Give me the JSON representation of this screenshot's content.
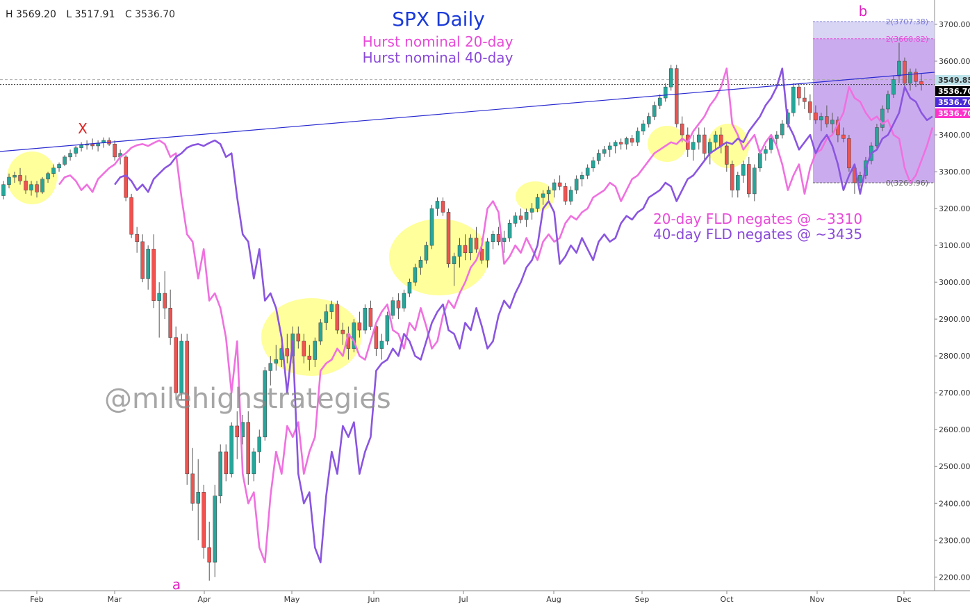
{
  "ohlc": {
    "high": "H 3569.20",
    "low": "L 3517.91",
    "close": "C 3536.70"
  },
  "chart_data": {
    "type": "candlestick",
    "title": "SPX Daily",
    "subtitle_lines": [
      {
        "text": "Hurst nominal 20-day",
        "color": "#e84ad8"
      },
      {
        "text": "Hurst nominal 40-day",
        "color": "#8a4ad8"
      }
    ],
    "x_ticks": [
      "Feb",
      "Mar",
      "Apr",
      "May",
      "Jun",
      "Jul",
      "Aug",
      "Sep",
      "Oct",
      "Nov",
      "Dec"
    ],
    "y_ticks": [
      3700,
      3600,
      3500,
      3400,
      3300,
      3200,
      3100,
      3000,
      2900,
      2800,
      2700,
      2600,
      2500,
      2400,
      2300,
      2200
    ],
    "y_tick_labels": [
      "3700.00",
      "3600.00",
      "3400.00",
      "3300.00",
      "3200.00",
      "3100.00",
      "3000.00",
      "2900.00",
      "2800.00",
      "2700.00",
      "2600.00",
      "2500.00",
      "2400.00",
      "2300.00",
      "2200.00"
    ],
    "ylim": [
      2160,
      3740
    ],
    "price_labels": [
      {
        "text": "3549.85",
        "value": 3549.85,
        "bg": "#bde3ea",
        "fg": "#333333"
      },
      {
        "text": "3536.70",
        "value": 3536.7,
        "bg": "#000000",
        "fg": "#ffffff"
      },
      {
        "text": "3536.70",
        "value": 3536.7,
        "bg": "#4a2ad8",
        "fg": "#ffffff"
      },
      {
        "text": "3536.70",
        "value": 3536.7,
        "bg": "#ff33cc",
        "fg": "#ffffff"
      }
    ],
    "fib_levels": [
      {
        "text": "2(3707.38)",
        "value": 3707.38,
        "color": "#7a7ad8"
      },
      {
        "text": "2(3660.82)",
        "value": 3660.82,
        "color": "#e84ad8"
      },
      {
        "text": "0(3269.96)",
        "value": 3269.96,
        "color": "#666666"
      }
    ],
    "annotations": [
      {
        "text": "X",
        "color": "#e02020"
      },
      {
        "text": "a",
        "color": "#e020c0"
      },
      {
        "text": "b",
        "color": "#e020c0"
      },
      {
        "text": "20-day FLD negates @ ~3310",
        "color": "#e84ad8"
      },
      {
        "text": "40-day FLD negates @ ~3435",
        "color": "#8a4ad8"
      }
    ],
    "watermark": "@milehighstrategies",
    "colors": {
      "up": "#26a69a",
      "down": "#ef5350",
      "fld20": "#f070e0",
      "fld40": "#8a55e0",
      "trendline": "#2a2ad0",
      "highlight": "#ffff66",
      "projection": "#b890e8"
    },
    "candles": [
      [
        3235,
        3275,
        3225,
        3265
      ],
      [
        3265,
        3295,
        3255,
        3285
      ],
      [
        3285,
        3300,
        3270,
        3290
      ],
      [
        3290,
        3310,
        3265,
        3275
      ],
      [
        3275,
        3290,
        3240,
        3250
      ],
      [
        3250,
        3275,
        3235,
        3265
      ],
      [
        3265,
        3275,
        3230,
        3245
      ],
      [
        3245,
        3285,
        3240,
        3280
      ],
      [
        3280,
        3300,
        3270,
        3295
      ],
      [
        3295,
        3320,
        3285,
        3310
      ],
      [
        3310,
        3325,
        3300,
        3320
      ],
      [
        3320,
        3345,
        3315,
        3340
      ],
      [
        3340,
        3360,
        3330,
        3350
      ],
      [
        3350,
        3370,
        3340,
        3365
      ],
      [
        3365,
        3380,
        3355,
        3372
      ],
      [
        3372,
        3385,
        3360,
        3375
      ],
      [
        3375,
        3390,
        3360,
        3370
      ],
      [
        3370,
        3385,
        3355,
        3378
      ],
      [
        3378,
        3393,
        3365,
        3385
      ],
      [
        3385,
        3393,
        3370,
        3375
      ],
      [
        3375,
        3385,
        3330,
        3340
      ],
      [
        3340,
        3360,
        3320,
        3350
      ],
      [
        3340,
        3345,
        3220,
        3230
      ],
      [
        3230,
        3240,
        3120,
        3130
      ],
      [
        3130,
        3150,
        3080,
        3110
      ],
      [
        3110,
        3130,
        3000,
        3010
      ],
      [
        3010,
        3100,
        2980,
        3090
      ],
      [
        3090,
        3130,
        2930,
        2950
      ],
      [
        2950,
        3000,
        2850,
        2970
      ],
      [
        2970,
        3030,
        2900,
        2930
      ],
      [
        2930,
        2980,
        2830,
        2850
      ],
      [
        2850,
        2880,
        2680,
        2700
      ],
      [
        2700,
        2860,
        2680,
        2840
      ],
      [
        2840,
        2860,
        2450,
        2480
      ],
      [
        2480,
        2550,
        2380,
        2400
      ],
      [
        2400,
        2520,
        2300,
        2430
      ],
      [
        2430,
        2450,
        2250,
        2280
      ],
      [
        2280,
        2350,
        2190,
        2240
      ],
      [
        2240,
        2450,
        2200,
        2420
      ],
      [
        2420,
        2560,
        2400,
        2540
      ],
      [
        2540,
        2560,
        2460,
        2480
      ],
      [
        2480,
        2620,
        2470,
        2610
      ],
      [
        2610,
        2650,
        2520,
        2580
      ],
      [
        2580,
        2640,
        2560,
        2620
      ],
      [
        2620,
        2650,
        2450,
        2480
      ],
      [
        2480,
        2550,
        2460,
        2540
      ],
      [
        2540,
        2600,
        2510,
        2580
      ],
      [
        2580,
        2770,
        2570,
        2760
      ],
      [
        2760,
        2800,
        2720,
        2780
      ],
      [
        2780,
        2830,
        2760,
        2790
      ],
      [
        2790,
        2830,
        2770,
        2820
      ],
      [
        2820,
        2860,
        2780,
        2800
      ],
      [
        2800,
        2880,
        2780,
        2860
      ],
      [
        2860,
        2880,
        2820,
        2840
      ],
      [
        2840,
        2860,
        2780,
        2800
      ],
      [
        2800,
        2830,
        2760,
        2790
      ],
      [
        2790,
        2850,
        2770,
        2840
      ],
      [
        2840,
        2900,
        2830,
        2890
      ],
      [
        2890,
        2940,
        2870,
        2920
      ],
      [
        2920,
        2950,
        2900,
        2940
      ],
      [
        2940,
        2950,
        2860,
        2870
      ],
      [
        2870,
        2890,
        2830,
        2860
      ],
      [
        2860,
        2880,
        2790,
        2820
      ],
      [
        2820,
        2900,
        2810,
        2890
      ],
      [
        2890,
        2920,
        2850,
        2870
      ],
      [
        2870,
        2940,
        2860,
        2930
      ],
      [
        2930,
        2950,
        2870,
        2880
      ],
      [
        2880,
        2890,
        2800,
        2820
      ],
      [
        2820,
        2860,
        2790,
        2840
      ],
      [
        2840,
        2920,
        2830,
        2910
      ],
      [
        2910,
        2960,
        2900,
        2950
      ],
      [
        2950,
        2970,
        2900,
        2930
      ],
      [
        2930,
        2980,
        2920,
        2970
      ],
      [
        2970,
        3010,
        2960,
        3000
      ],
      [
        3000,
        3050,
        2990,
        3040
      ],
      [
        3040,
        3070,
        3020,
        3060
      ],
      [
        3060,
        3110,
        3050,
        3100
      ],
      [
        3100,
        3210,
        3090,
        3200
      ],
      [
        3200,
        3230,
        3180,
        3220
      ],
      [
        3220,
        3230,
        3180,
        3190
      ],
      [
        3190,
        3200,
        3040,
        3050
      ],
      [
        3050,
        3080,
        2990,
        3070
      ],
      [
        3070,
        3120,
        3040,
        3100
      ],
      [
        3100,
        3130,
        3060,
        3080
      ],
      [
        3080,
        3130,
        3060,
        3120
      ],
      [
        3120,
        3150,
        3080,
        3090
      ],
      [
        3090,
        3120,
        3050,
        3060
      ],
      [
        3060,
        3120,
        3040,
        3110
      ],
      [
        3110,
        3140,
        3090,
        3130
      ],
      [
        3130,
        3150,
        3100,
        3110
      ],
      [
        3110,
        3140,
        3080,
        3120
      ],
      [
        3120,
        3170,
        3110,
        3160
      ],
      [
        3160,
        3190,
        3150,
        3180
      ],
      [
        3180,
        3200,
        3160,
        3170
      ],
      [
        3170,
        3200,
        3150,
        3190
      ],
      [
        3190,
        3215,
        3170,
        3200
      ],
      [
        3200,
        3240,
        3190,
        3230
      ],
      [
        3230,
        3250,
        3210,
        3240
      ],
      [
        3240,
        3260,
        3220,
        3250
      ],
      [
        3250,
        3280,
        3230,
        3270
      ],
      [
        3270,
        3290,
        3250,
        3260
      ],
      [
        3260,
        3270,
        3210,
        3220
      ],
      [
        3220,
        3260,
        3210,
        3250
      ],
      [
        3250,
        3290,
        3240,
        3280
      ],
      [
        3280,
        3300,
        3260,
        3290
      ],
      [
        3290,
        3320,
        3280,
        3310
      ],
      [
        3310,
        3340,
        3300,
        3330
      ],
      [
        3330,
        3360,
        3320,
        3350
      ],
      [
        3350,
        3370,
        3340,
        3360
      ],
      [
        3360,
        3380,
        3340,
        3370
      ],
      [
        3370,
        3385,
        3350,
        3380
      ],
      [
        3380,
        3390,
        3360,
        3375
      ],
      [
        3375,
        3395,
        3360,
        3390
      ],
      [
        3390,
        3400,
        3370,
        3380
      ],
      [
        3380,
        3420,
        3370,
        3410
      ],
      [
        3410,
        3440,
        3400,
        3430
      ],
      [
        3430,
        3460,
        3420,
        3450
      ],
      [
        3450,
        3490,
        3440,
        3480
      ],
      [
        3480,
        3510,
        3470,
        3500
      ],
      [
        3500,
        3540,
        3490,
        3530
      ],
      [
        3530,
        3590,
        3520,
        3580
      ],
      [
        3580,
        3590,
        3420,
        3430
      ],
      [
        3430,
        3450,
        3380,
        3400
      ],
      [
        3400,
        3420,
        3340,
        3360
      ],
      [
        3360,
        3400,
        3330,
        3380
      ],
      [
        3380,
        3420,
        3360,
        3400
      ],
      [
        3400,
        3420,
        3330,
        3350
      ],
      [
        3350,
        3390,
        3320,
        3380
      ],
      [
        3380,
        3410,
        3360,
        3400
      ],
      [
        3400,
        3420,
        3350,
        3370
      ],
      [
        3370,
        3380,
        3300,
        3320
      ],
      [
        3320,
        3330,
        3230,
        3250
      ],
      [
        3250,
        3300,
        3230,
        3290
      ],
      [
        3290,
        3330,
        3270,
        3320
      ],
      [
        3320,
        3340,
        3230,
        3240
      ],
      [
        3240,
        3320,
        3220,
        3310
      ],
      [
        3310,
        3360,
        3300,
        3350
      ],
      [
        3350,
        3370,
        3330,
        3360
      ],
      [
        3360,
        3400,
        3350,
        3390
      ],
      [
        3390,
        3410,
        3370,
        3400
      ],
      [
        3400,
        3440,
        3390,
        3430
      ],
      [
        3430,
        3470,
        3420,
        3460
      ],
      [
        3460,
        3540,
        3450,
        3530
      ],
      [
        3530,
        3540,
        3480,
        3500
      ],
      [
        3500,
        3530,
        3470,
        3490
      ],
      [
        3490,
        3510,
        3440,
        3460
      ],
      [
        3460,
        3480,
        3430,
        3440
      ],
      [
        3440,
        3460,
        3410,
        3450
      ],
      [
        3450,
        3480,
        3420,
        3430
      ],
      [
        3430,
        3460,
        3400,
        3440
      ],
      [
        3440,
        3450,
        3380,
        3400
      ],
      [
        3400,
        3420,
        3380,
        3390
      ],
      [
        3390,
        3400,
        3300,
        3310
      ],
      [
        3310,
        3320,
        3240,
        3270
      ],
      [
        3270,
        3300,
        3260,
        3290
      ],
      [
        3290,
        3340,
        3280,
        3330
      ],
      [
        3330,
        3380,
        3320,
        3370
      ],
      [
        3370,
        3430,
        3360,
        3420
      ],
      [
        3420,
        3480,
        3410,
        3470
      ],
      [
        3470,
        3520,
        3460,
        3510
      ],
      [
        3510,
        3560,
        3500,
        3550
      ],
      [
        3560,
        3650,
        3540,
        3600
      ],
      [
        3600,
        3610,
        3520,
        3540
      ],
      [
        3540,
        3580,
        3520,
        3570
      ],
      [
        3570,
        3580,
        3530,
        3545
      ],
      [
        3545,
        3565,
        3520,
        3537
      ]
    ]
  }
}
